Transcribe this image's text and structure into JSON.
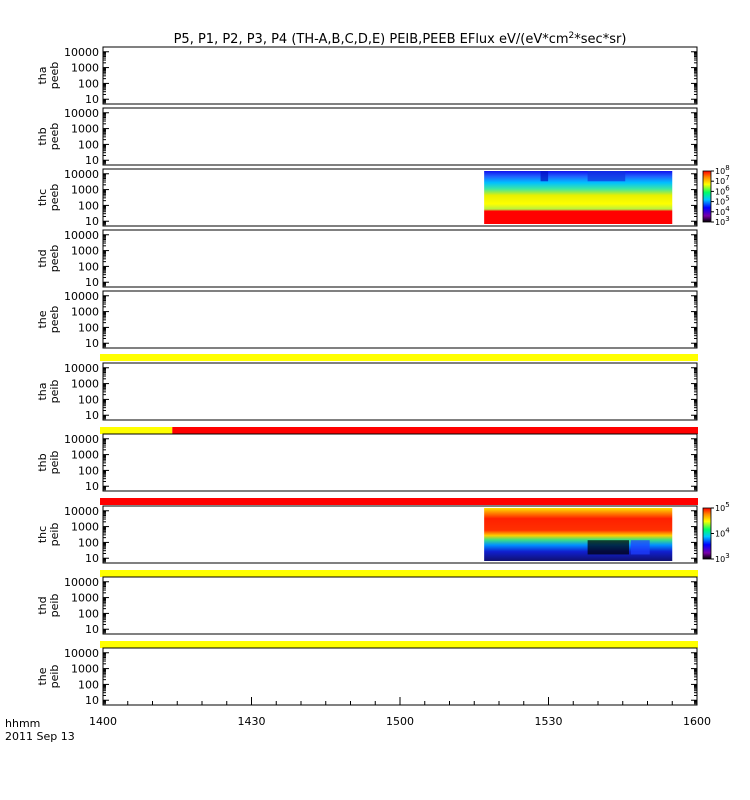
{
  "title": "P5, P1, P2, P3, P4 (TH-A,B,C,D,E) PEIB,PEEB EFlux eV/(eV*cm",
  "title_sup": "2",
  "title_end": "*sec*sr)",
  "time_label": "hhmm",
  "date_label": "2011 Sep 13",
  "colors": {
    "yellow_bar": "#ffff00",
    "red_bar": "#ff0000",
    "axis": "#000000"
  },
  "chart_data": {
    "type": "heatmap",
    "x_ticks": [
      "1400",
      "1430",
      "1500",
      "1530",
      "1600"
    ],
    "x_range_minutes": [
      0,
      120
    ],
    "y_scale": "log",
    "y_ticks": [
      "10000",
      "1000",
      "100",
      "10"
    ],
    "panels": [
      {
        "label1": "tha",
        "label2": "peeb",
        "has_data": false
      },
      {
        "label1": "thb",
        "label2": "peeb",
        "has_data": false
      },
      {
        "label1": "thc",
        "label2": "peeb",
        "has_data": true,
        "data_time_range": [
          "1517",
          "1555"
        ],
        "colorbar": {
          "exponents": [
            "8",
            "7",
            "6",
            "5",
            "4",
            "3"
          ],
          "base": "10"
        },
        "note": "strong flux (red) at lowest energies, yellow/green mid energies, blue at highest energies"
      },
      {
        "label1": "thd",
        "label2": "peeb",
        "has_data": false
      },
      {
        "label1": "the",
        "label2": "peeb",
        "has_data": false,
        "status_bar": [
          {
            "from": "1400",
            "to": "1600",
            "color": "yellow"
          }
        ]
      },
      {
        "label1": "tha",
        "label2": "peib",
        "has_data": false,
        "status_bar": [
          {
            "from": "1400",
            "to": "1414",
            "color": "yellow"
          },
          {
            "from": "1414",
            "to": "1600",
            "color": "red"
          }
        ]
      },
      {
        "label1": "thb",
        "label2": "peib",
        "has_data": false,
        "status_bar": [
          {
            "from": "1400",
            "to": "1600",
            "color": "red"
          }
        ]
      },
      {
        "label1": "thc",
        "label2": "peib",
        "has_data": true,
        "data_time_range": [
          "1517",
          "1555"
        ],
        "colorbar": {
          "exponents": [
            "5",
            "4",
            "3"
          ],
          "base": "10"
        },
        "note": "strong flux (red) at high energies, blue/black at low energies",
        "status_bar": [
          {
            "from": "1400",
            "to": "1600",
            "color": "yellow"
          }
        ]
      },
      {
        "label1": "thd",
        "label2": "peib",
        "has_data": false,
        "status_bar": [
          {
            "from": "1400",
            "to": "1600",
            "color": "yellow"
          }
        ]
      },
      {
        "label1": "the",
        "label2": "peib",
        "has_data": false
      }
    ]
  }
}
